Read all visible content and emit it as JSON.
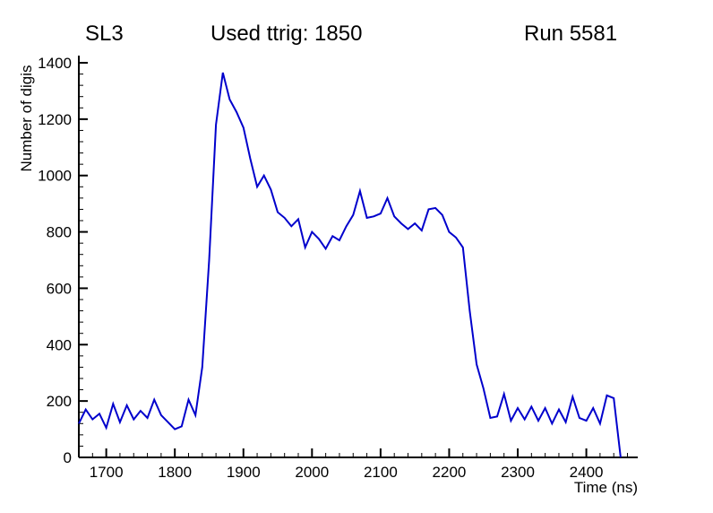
{
  "header": {
    "left": "SL3",
    "center": "Used ttrig: 1850",
    "right": "Run 5581"
  },
  "chart_data": {
    "type": "line",
    "title": "",
    "xlabel": "Time (ns)",
    "ylabel": "Number of digis",
    "xlim": [
      1660,
      2475
    ],
    "ylim": [
      0,
      1400
    ],
    "x_ticks": [
      1700,
      1800,
      1900,
      2000,
      2100,
      2200,
      2300,
      2400
    ],
    "y_ticks": [
      0,
      200,
      400,
      600,
      800,
      1000,
      1200,
      1400
    ],
    "x_minor_step": 20,
    "y_minor_step": 40,
    "grid": false,
    "legend": "none",
    "line_color": "#0000cc",
    "axis_color": "#000000",
    "series": [
      {
        "name": "digis",
        "x": [
          1660,
          1670,
          1680,
          1690,
          1700,
          1710,
          1720,
          1730,
          1740,
          1750,
          1760,
          1770,
          1780,
          1790,
          1800,
          1810,
          1820,
          1830,
          1840,
          1850,
          1860,
          1870,
          1880,
          1890,
          1900,
          1910,
          1920,
          1930,
          1940,
          1950,
          1960,
          1970,
          1980,
          1990,
          2000,
          2010,
          2020,
          2030,
          2040,
          2050,
          2060,
          2070,
          2080,
          2090,
          2100,
          2110,
          2120,
          2130,
          2140,
          2150,
          2160,
          2170,
          2180,
          2190,
          2200,
          2210,
          2220,
          2230,
          2240,
          2250,
          2260,
          2270,
          2280,
          2290,
          2300,
          2310,
          2320,
          2330,
          2340,
          2350,
          2360,
          2370,
          2380,
          2390,
          2400,
          2410,
          2420,
          2430,
          2440,
          2450
        ],
        "y": [
          120,
          170,
          135,
          155,
          105,
          190,
          125,
          185,
          135,
          165,
          140,
          205,
          150,
          125,
          100,
          110,
          205,
          150,
          320,
          700,
          1180,
          1365,
          1270,
          1225,
          1170,
          1060,
          960,
          1000,
          950,
          870,
          850,
          820,
          845,
          745,
          800,
          775,
          740,
          785,
          770,
          820,
          860,
          945,
          850,
          855,
          865,
          920,
          855,
          830,
          810,
          830,
          805,
          880,
          885,
          860,
          800,
          780,
          745,
          520,
          330,
          245,
          140,
          145,
          225,
          130,
          175,
          135,
          180,
          130,
          175,
          120,
          170,
          125,
          215,
          140,
          130,
          175,
          120,
          220,
          210,
          0
        ]
      }
    ]
  }
}
